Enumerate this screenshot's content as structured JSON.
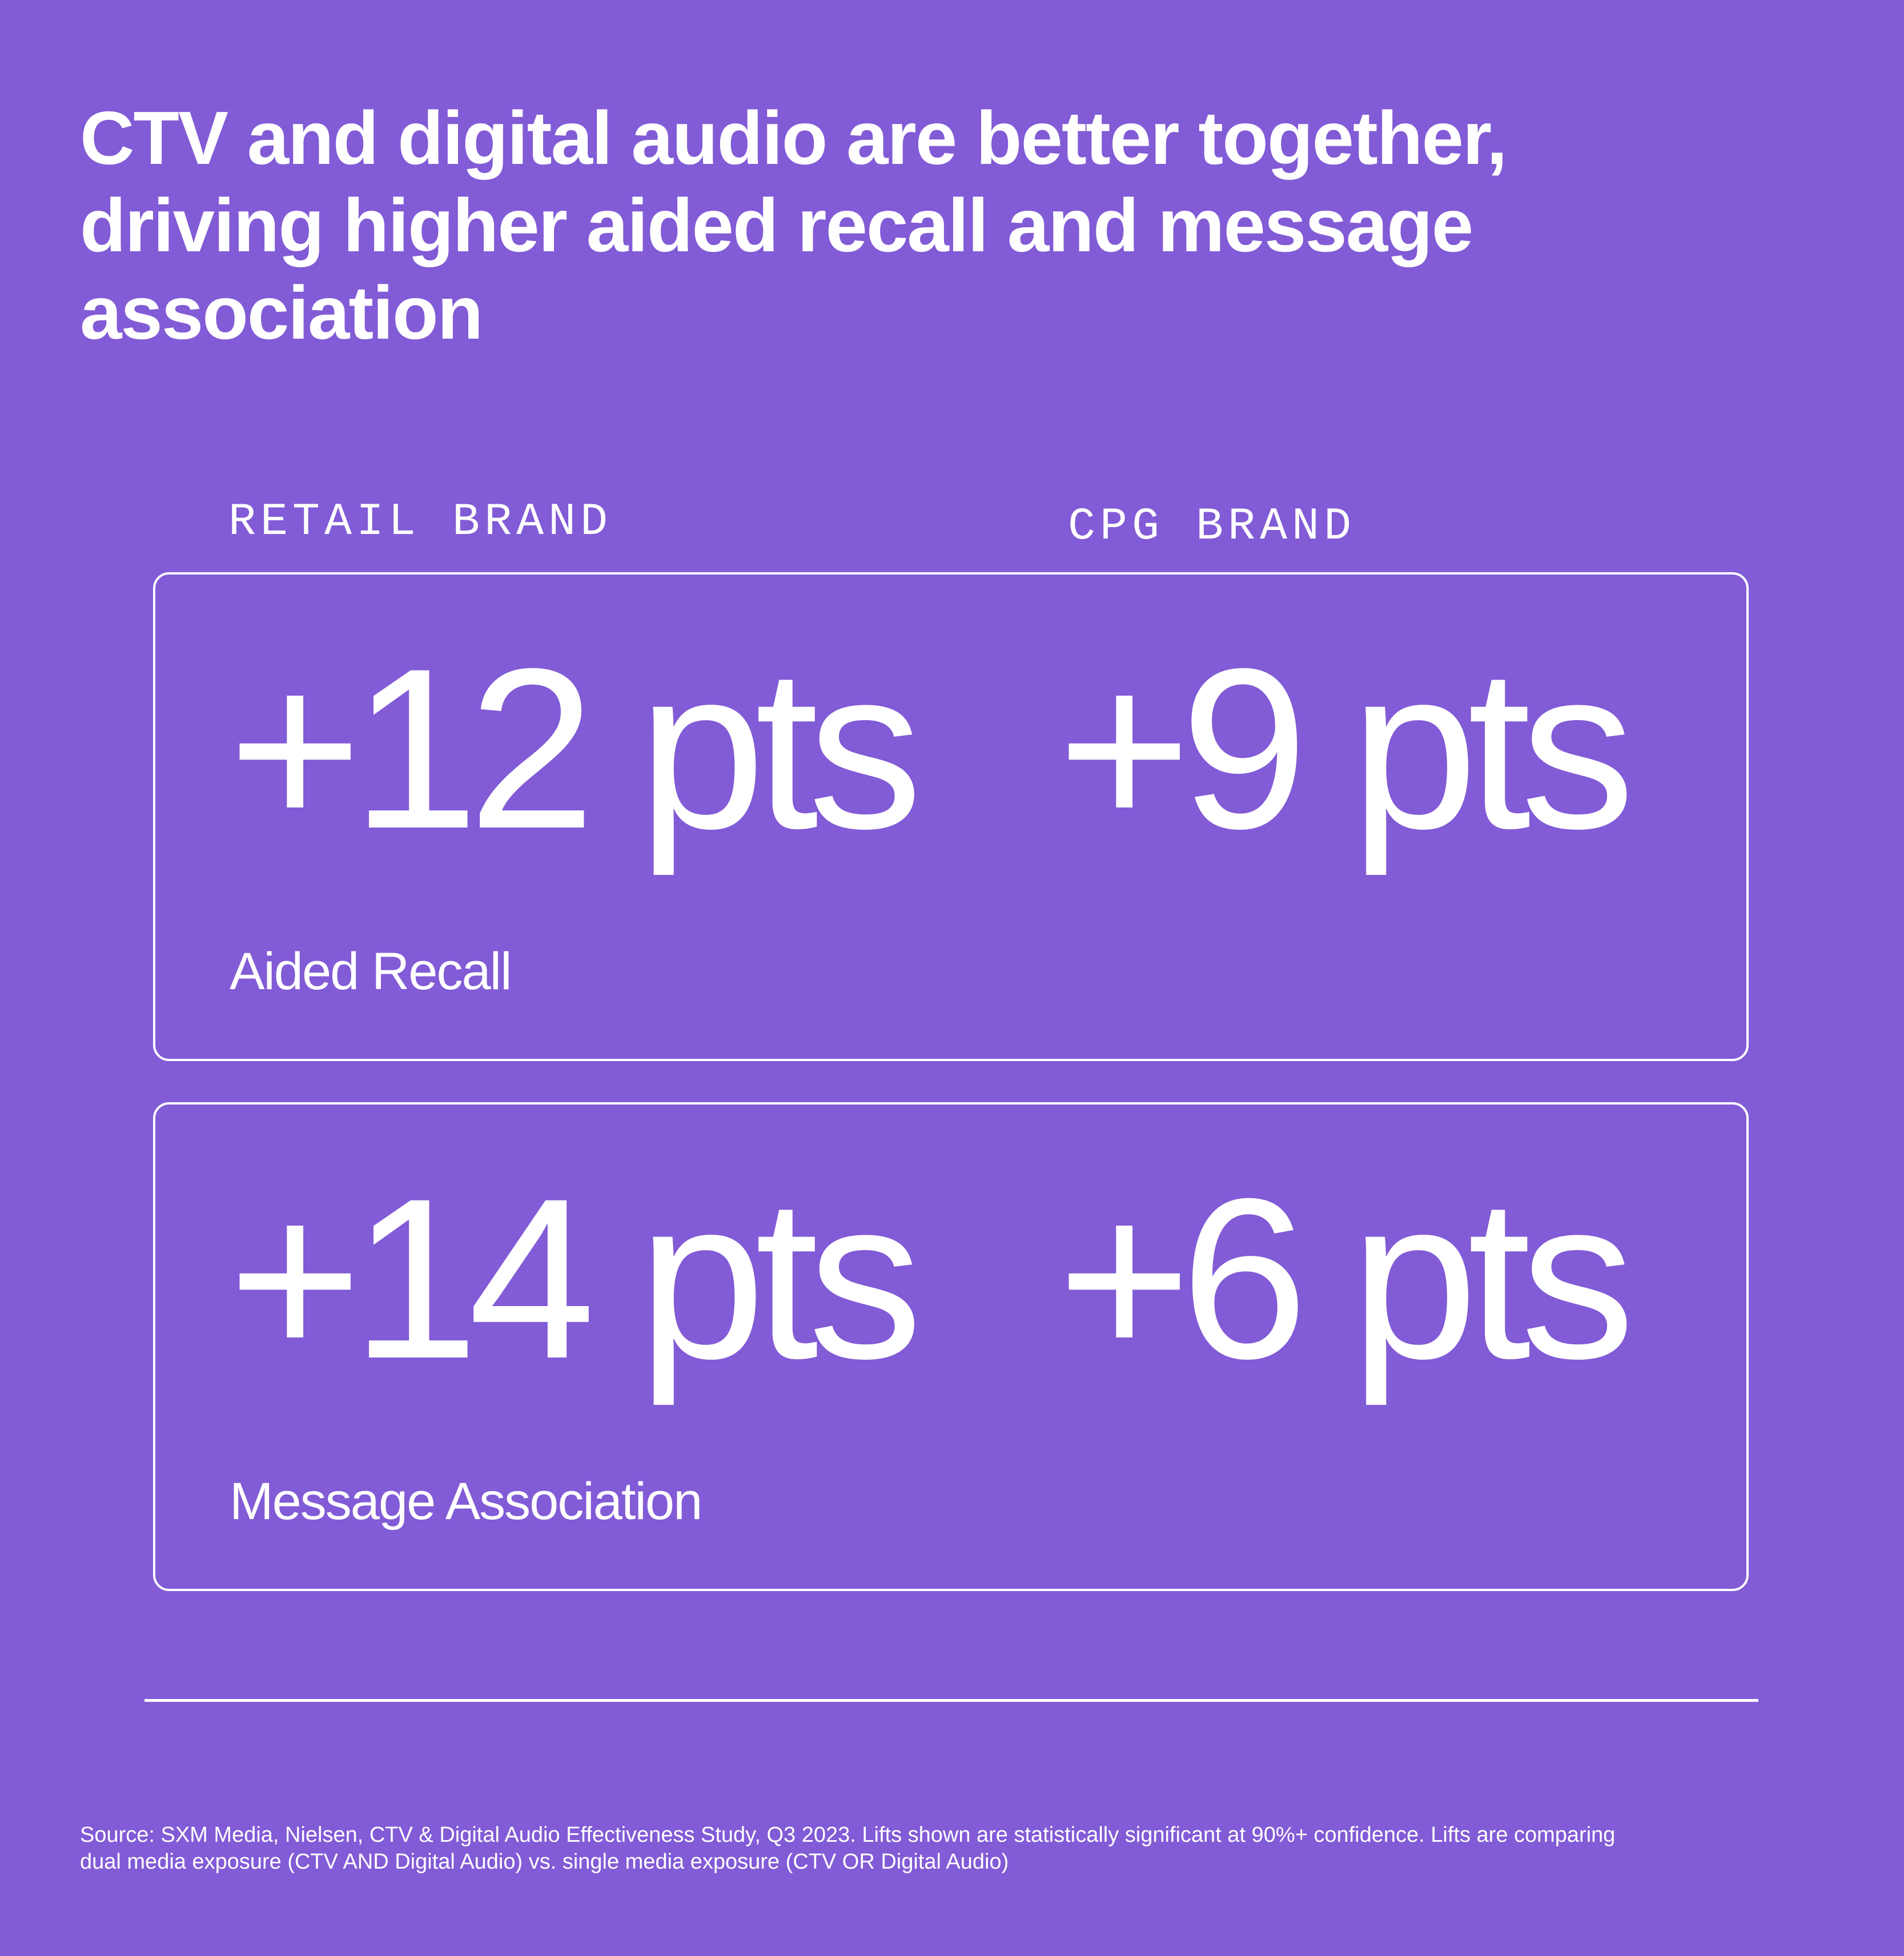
{
  "headline": "CTV and digital audio are better together, driving higher aided recall and message association",
  "columns": {
    "retail": "RETAIL BRAND",
    "cpg": "CPG BRAND"
  },
  "metrics": [
    {
      "label": "Aided Recall",
      "retail_value": "+12 pts",
      "cpg_value": "+9 pts"
    },
    {
      "label": "Message Association",
      "retail_value": "+14 pts",
      "cpg_value": "+6 pts"
    }
  ],
  "source": "Source: SXM Media, Nielsen, CTV & Digital Audio Effectiveness Study, Q3 2023. Lifts shown are statistically significant at 90%+ confidence. Lifts are comparing dual media exposure (CTV AND Digital Audio) vs. single media exposure (CTV OR Digital Audio)",
  "colors": {
    "background": "#825bd6",
    "foreground": "#ffffff"
  }
}
